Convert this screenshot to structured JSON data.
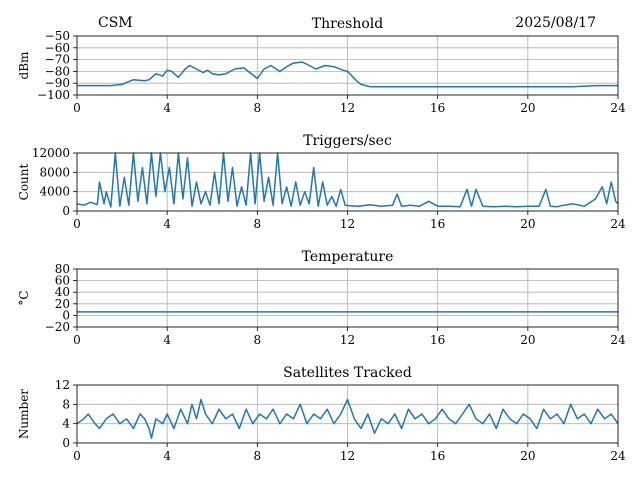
{
  "header": {
    "left": "CSM",
    "date": "2025/08/17"
  },
  "chart_data": [
    {
      "type": "line",
      "title": "Threshold",
      "ylabel": "dBm",
      "xlabel": "",
      "xlim": [
        0,
        24
      ],
      "ylim": [
        -100,
        -50
      ],
      "xticks": [
        0,
        4,
        8,
        12,
        16,
        20,
        24
      ],
      "yticks": [
        -100,
        -90,
        -80,
        -70,
        -60,
        -50
      ],
      "ytick_labels": [
        "−100",
        "−90",
        "−80",
        "−70",
        "−60",
        "−50"
      ],
      "grid": true,
      "series": [
        {
          "color": "#1f77b4",
          "x": [
            0,
            1.5,
            2.0,
            2.5,
            3.0,
            3.2,
            3.5,
            3.8,
            4.0,
            4.2,
            4.5,
            4.8,
            5.0,
            5.3,
            5.6,
            5.8,
            6.0,
            6.3,
            6.6,
            7.0,
            7.4,
            7.6,
            7.8,
            8.0,
            8.3,
            8.6,
            9.0,
            9.3,
            9.6,
            10.0,
            10.3,
            10.6,
            11.0,
            11.4,
            11.8,
            12.0,
            12.4,
            12.6,
            13.0,
            14.0,
            16.0,
            18.0,
            20.0,
            22.0,
            23.0,
            24.0
          ],
          "y": [
            -92,
            -92,
            -91,
            -87,
            -88,
            -87,
            -82,
            -84,
            -79,
            -80,
            -85,
            -78,
            -75,
            -78,
            -81,
            -79,
            -82,
            -83,
            -82,
            -78,
            -77,
            -80,
            -83,
            -86,
            -78,
            -75,
            -80,
            -76,
            -73,
            -72,
            -75,
            -78,
            -75,
            -76,
            -79,
            -80,
            -88,
            -91,
            -93,
            -93,
            -93,
            -93,
            -93,
            -93,
            -92,
            -92
          ]
        }
      ]
    },
    {
      "type": "line",
      "title": "Triggers/sec",
      "ylabel": "Count",
      "xlabel": "",
      "xlim": [
        0,
        24
      ],
      "ylim": [
        0,
        12000
      ],
      "xticks": [
        0,
        4,
        8,
        12,
        16,
        20,
        24
      ],
      "yticks": [
        0,
        4000,
        8000,
        12000
      ],
      "ytick_labels": [
        "0",
        "4000",
        "8000",
        "12000"
      ],
      "grid": true,
      "series": [
        {
          "color": "#1f77b4",
          "x": [
            0,
            0.3,
            0.6,
            0.9,
            1.0,
            1.2,
            1.3,
            1.5,
            1.7,
            1.9,
            2.1,
            2.3,
            2.5,
            2.7,
            2.9,
            3.1,
            3.3,
            3.5,
            3.7,
            3.9,
            4.1,
            4.3,
            4.5,
            4.7,
            4.9,
            5.1,
            5.3,
            5.5,
            5.7,
            5.9,
            6.1,
            6.3,
            6.5,
            6.7,
            6.9,
            7.1,
            7.3,
            7.5,
            7.7,
            7.9,
            8.1,
            8.3,
            8.5,
            8.7,
            8.9,
            9.1,
            9.3,
            9.5,
            9.7,
            9.9,
            10.1,
            10.3,
            10.5,
            10.7,
            10.9,
            11.1,
            11.3,
            11.5,
            11.7,
            11.9,
            12.1,
            12.5,
            13.0,
            13.5,
            14.0,
            14.2,
            14.4,
            14.8,
            15.2,
            15.6,
            16.0,
            16.5,
            17.0,
            17.3,
            17.5,
            17.7,
            18.0,
            18.5,
            19.0,
            19.5,
            20.0,
            20.5,
            20.8,
            21.0,
            21.3,
            21.6,
            22.0,
            22.5,
            23.0,
            23.3,
            23.5,
            23.7,
            23.9,
            24.0
          ],
          "y": [
            1500,
            1200,
            1800,
            1300,
            6000,
            1500,
            4000,
            800,
            12000,
            1000,
            7000,
            1200,
            12000,
            2000,
            9000,
            1500,
            12000,
            3000,
            12000,
            4000,
            9000,
            1500,
            12000,
            2500,
            11000,
            1000,
            6000,
            1500,
            4000,
            1200,
            8000,
            1500,
            12000,
            2000,
            9000,
            1000,
            5000,
            1200,
            12000,
            1500,
            12000,
            2000,
            7000,
            1200,
            12000,
            1500,
            5000,
            1000,
            6000,
            1200,
            4000,
            1500,
            9000,
            1000,
            6000,
            1200,
            3000,
            1000,
            4500,
            1200,
            1100,
            1000,
            1300,
            1000,
            1200,
            3500,
            1000,
            1200,
            1000,
            2000,
            1000,
            1000,
            900,
            4500,
            1000,
            4500,
            1000,
            900,
            1000,
            900,
            1000,
            1000,
            4500,
            1000,
            900,
            1200,
            1500,
            1000,
            2500,
            5000,
            1500,
            6000,
            2000,
            1500
          ]
        }
      ]
    },
    {
      "type": "line",
      "title": "Temperature",
      "ylabel": "°C",
      "xlabel": "",
      "xlim": [
        0,
        24
      ],
      "ylim": [
        -20,
        80
      ],
      "xticks": [
        0,
        4,
        8,
        12,
        16,
        20,
        24
      ],
      "yticks": [
        -20,
        0,
        20,
        40,
        60,
        80
      ],
      "ytick_labels": [
        "−20",
        "0",
        "20",
        "40",
        "60",
        "80"
      ],
      "grid": true,
      "series": [
        {
          "color": "#1f77b4",
          "x": [
            0,
            24
          ],
          "y": [
            6,
            6
          ]
        }
      ]
    },
    {
      "type": "line",
      "title": "Satellites Tracked",
      "ylabel": "Number",
      "xlabel": "",
      "xlim": [
        0,
        24
      ],
      "ylim": [
        0,
        12
      ],
      "xticks": [
        0,
        4,
        8,
        12,
        16,
        20,
        24
      ],
      "yticks": [
        0,
        4,
        8,
        12
      ],
      "ytick_labels": [
        "0",
        "4",
        "8",
        "12"
      ],
      "grid": true,
      "series": [
        {
          "color": "#1f77b4",
          "x": [
            0,
            0.3,
            0.5,
            0.8,
            1.0,
            1.3,
            1.6,
            1.9,
            2.2,
            2.5,
            2.8,
            3.0,
            3.2,
            3.3,
            3.5,
            3.8,
            4.0,
            4.3,
            4.6,
            4.9,
            5.1,
            5.3,
            5.5,
            5.7,
            6.0,
            6.3,
            6.6,
            6.9,
            7.2,
            7.5,
            7.8,
            8.1,
            8.4,
            8.7,
            9.0,
            9.3,
            9.6,
            9.9,
            10.2,
            10.5,
            10.8,
            11.1,
            11.4,
            11.7,
            12.0,
            12.3,
            12.6,
            12.9,
            13.2,
            13.5,
            13.8,
            14.1,
            14.4,
            14.7,
            15.0,
            15.3,
            15.6,
            15.9,
            16.2,
            16.5,
            16.8,
            17.1,
            17.4,
            17.7,
            18.0,
            18.3,
            18.6,
            18.9,
            19.2,
            19.5,
            19.8,
            20.1,
            20.4,
            20.7,
            21.0,
            21.3,
            21.6,
            21.9,
            22.2,
            22.5,
            22.8,
            23.1,
            23.4,
            23.7,
            24.0
          ],
          "y": [
            4,
            5,
            6,
            4,
            3,
            5,
            6,
            4,
            5,
            3,
            6,
            5,
            3,
            1,
            5,
            4,
            6,
            3,
            7,
            4,
            8,
            5,
            9,
            6,
            4,
            7,
            5,
            6,
            3,
            7,
            4,
            6,
            5,
            7,
            4,
            6,
            5,
            8,
            4,
            6,
            5,
            7,
            4,
            6,
            9,
            5,
            3,
            6,
            2,
            5,
            4,
            6,
            3,
            7,
            5,
            6,
            4,
            5,
            7,
            5,
            4,
            6,
            8,
            5,
            4,
            6,
            3,
            7,
            5,
            4,
            6,
            5,
            3,
            7,
            5,
            6,
            4,
            8,
            5,
            6,
            4,
            7,
            5,
            6,
            4
          ]
        }
      ]
    }
  ]
}
